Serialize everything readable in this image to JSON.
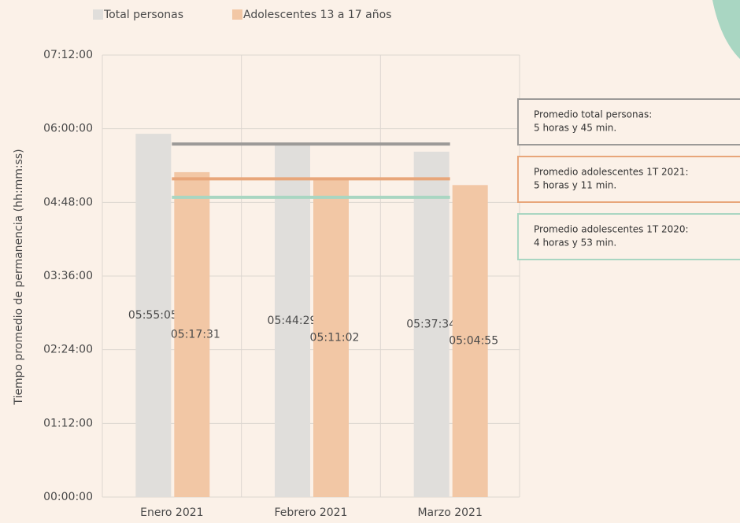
{
  "chart_data": {
    "type": "bar",
    "y_axis_label": "Tiempo promedio de permanencia (hh:mm:ss)",
    "categories": [
      "Enero 2021",
      "Febrero 2021",
      "Marzo 2021"
    ],
    "series": [
      {
        "name": "Total personas",
        "color": "#e0dedb",
        "values": [
          21305,
          20669,
          20254
        ],
        "value_labels": [
          "05:55:05",
          "05:44:29",
          "05:37:34"
        ]
      },
      {
        "name": "Adolescentes 13 a 17 años",
        "color": "#f2c7a5",
        "values": [
          19051,
          18662,
          18295
        ],
        "value_labels": [
          "05:17:31",
          "05:11:02",
          "05:04:55"
        ]
      }
    ],
    "ylim": [
      0,
      25920
    ],
    "yticks": [
      {
        "value": 0,
        "label": "00:00:00"
      },
      {
        "value": 4320,
        "label": "01:12:00"
      },
      {
        "value": 8640,
        "label": "02:24:00"
      },
      {
        "value": 12960,
        "label": "03:36:00"
      },
      {
        "value": 17280,
        "label": "04:48:00"
      },
      {
        "value": 21600,
        "label": "06:00:00"
      },
      {
        "value": 25920,
        "label": "07:12:00"
      }
    ],
    "grid": true,
    "reference_lines": [
      {
        "value": 20700,
        "color": "#9c9a98",
        "text": [
          "Promedio total personas:",
          "5 horas y 45 min."
        ]
      },
      {
        "value": 18660,
        "color": "#e8a67a",
        "text": [
          "Promedio adolescentes 1T 2021:",
          "5 horas y 11 min."
        ]
      },
      {
        "value": 17580,
        "color": "#a9d6c2",
        "text": [
          "Promedio adolescentes 1T 2020:",
          "4 horas y 53 min."
        ]
      }
    ]
  }
}
